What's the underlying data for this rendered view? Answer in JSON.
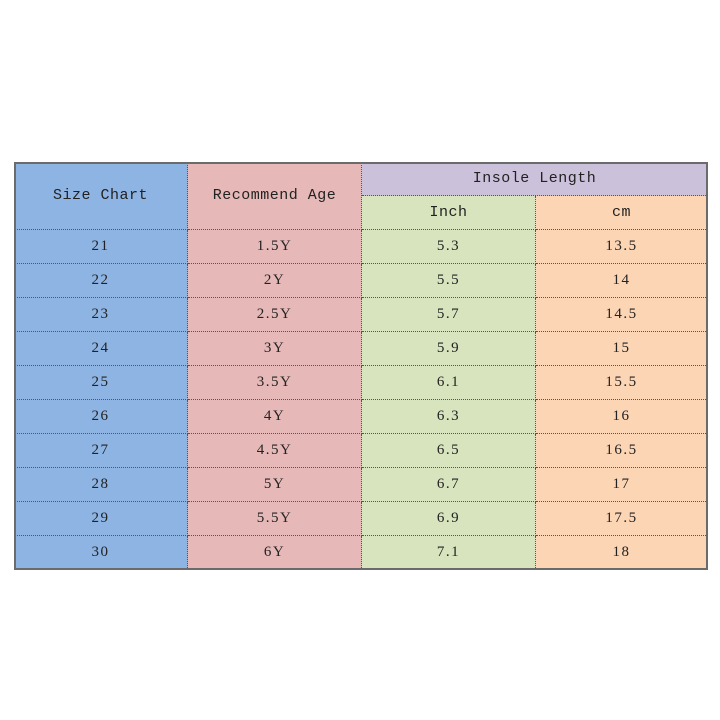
{
  "table": {
    "header": {
      "size": "Size Chart",
      "age": "Recommend Age",
      "insole": "Insole Length",
      "inch": "Inch",
      "cm": "cm"
    },
    "rows": [
      [
        "21",
        "1.5Y",
        "5.3",
        "13.5"
      ],
      [
        "22",
        "2Y",
        "5.5",
        "14"
      ],
      [
        "23",
        "2.5Y",
        "5.7",
        "14.5"
      ],
      [
        "24",
        "3Y",
        "5.9",
        "15"
      ],
      [
        "25",
        "3.5Y",
        "6.1",
        "15.5"
      ],
      [
        "26",
        "4Y",
        "6.3",
        "16"
      ],
      [
        "27",
        "4.5Y",
        "6.5",
        "16.5"
      ],
      [
        "28",
        "5Y",
        "6.7",
        "17"
      ],
      [
        "29",
        "5.5Y",
        "6.9",
        "17.5"
      ],
      [
        "30",
        "6Y",
        "7.1",
        "18"
      ]
    ]
  }
}
